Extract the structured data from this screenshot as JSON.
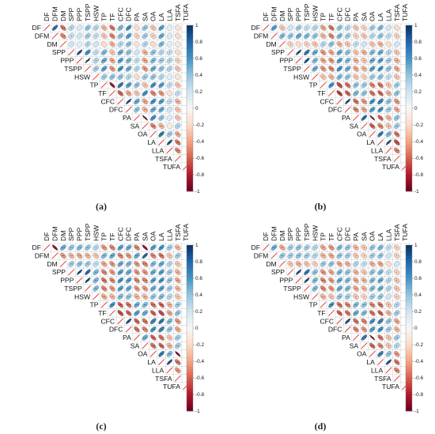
{
  "chart_data": [
    {
      "type": "heatmap",
      "subtype": "correlation-ellipse-upper-triangle",
      "caption": "(a)",
      "variables": [
        "DF",
        "DFM",
        "DM",
        "SPP",
        "PPP",
        "TSPP",
        "HSW",
        "TP",
        "TF",
        "CFC",
        "DFC",
        "PA",
        "SA",
        "OA",
        "LA",
        "LLA",
        "TSFA",
        "TUFA"
      ],
      "colorbar": {
        "ticks": [
          1,
          0.8,
          0.6,
          0.4,
          0.2,
          0,
          -0.2,
          -0.4,
          -0.6,
          -0.8,
          -1
        ],
        "colors": {
          "positive": "#053061",
          "zero": "#f7f7f7",
          "negative": "#67001f"
        }
      },
      "legend": "right",
      "correlation_rows": [
        [
          0.75,
          -0.55,
          0.3,
          0.15,
          0.4,
          0.3,
          -0.35,
          -0.55,
          0.45,
          0.6,
          -0.2,
          0.4,
          -0.3,
          0.55,
          0.1,
          -0.15
        ],
        [
          -0.5,
          0.25,
          0.2,
          0.35,
          0.25,
          -0.3,
          -0.5,
          0.4,
          0.55,
          -0.25,
          0.35,
          -0.25,
          0.5,
          0.15,
          -0.2
        ],
        [
          0.2,
          0.1,
          0.3,
          0.2,
          -0.2,
          -0.35,
          0.3,
          0.4,
          -0.15,
          0.3,
          -0.2,
          0.45,
          0.1,
          -0.1
        ],
        [
          0.85,
          0.6,
          0.25,
          0.45,
          -0.3,
          0.5,
          0.4,
          0.2,
          -0.35,
          0.4,
          0.3,
          0.25,
          -0.2
        ],
        [
          0.95,
          0.3,
          0.5,
          -0.4,
          0.55,
          0.45,
          0.25,
          -0.4,
          0.45,
          0.35,
          0.3,
          -0.25
        ],
        [
          0.35,
          0.55,
          -0.45,
          0.6,
          0.5,
          0.3,
          -0.45,
          0.5,
          0.4,
          0.3,
          -0.3
        ],
        [
          0.35,
          0.4,
          0.4,
          0.3,
          -0.2,
          0.35,
          0.4,
          0.3,
          0.1,
          -0.15
        ],
        [
          -0.8,
          0.7,
          0.55,
          0.4,
          -0.3,
          0.6,
          0.55,
          0.25,
          -0.3
        ],
        [
          -0.6,
          -0.4,
          -0.3,
          0.6,
          -0.5,
          -0.45,
          -0.15,
          0.25
        ],
        [
          0.9,
          0.5,
          -0.4,
          0.6,
          0.55,
          0.25,
          -0.35
        ],
        [
          0.4,
          -0.35,
          0.5,
          0.5,
          0.2,
          -0.3
        ],
        [
          -0.95,
          0.6,
          0.4,
          0.15,
          -0.3
        ],
        [
          -0.5,
          -0.35,
          -0.1,
          0.3
        ],
        [
          0.7,
          0.35,
          -0.4
        ],
        [
          0.85,
          -0.55
        ],
        [
          -0.5
        ],
        []
      ]
    },
    {
      "type": "heatmap",
      "subtype": "correlation-ellipse-upper-triangle",
      "caption": "(b)",
      "variables": [
        "DF",
        "DFM",
        "DM",
        "SPP",
        "PPP",
        "TSPP",
        "HSW",
        "TP",
        "TF",
        "CFC",
        "DFC",
        "PA",
        "SA",
        "OA",
        "LA",
        "LLA",
        "TSFA",
        "TUFA"
      ],
      "colorbar": {
        "ticks": [
          1,
          0.8,
          0.6,
          0.4,
          0.2,
          0,
          -0.2,
          -0.4,
          -0.6,
          -0.8,
          -1
        ],
        "colors": {
          "positive": "#053061",
          "zero": "#f7f7f7",
          "negative": "#67001f"
        }
      },
      "legend": "right",
      "correlation_rows": [
        [
          0.55,
          -0.3,
          0.2,
          0.35,
          0.25,
          0.3,
          -0.4,
          -0.55,
          0.4,
          0.3,
          -0.3,
          -0.25,
          0.35,
          0.45,
          0.2,
          -0.2
        ],
        [
          0.45,
          0.4,
          0.5,
          0.45,
          0.4,
          -0.35,
          -0.5,
          0.45,
          0.35,
          -0.25,
          -0.3,
          0.3,
          0.4,
          0.25,
          -0.25
        ],
        [
          -0.25,
          -0.2,
          -0.25,
          -0.3,
          0.3,
          0.4,
          -0.35,
          -0.3,
          0.25,
          0.2,
          -0.3,
          -0.35,
          -0.2,
          0.2
        ],
        [
          0.9,
          0.7,
          0.5,
          -0.45,
          -0.4,
          0.5,
          0.4,
          -0.3,
          -0.35,
          0.45,
          0.5,
          0.3,
          -0.3
        ],
        [
          0.85,
          0.45,
          -0.4,
          -0.45,
          0.55,
          0.45,
          -0.35,
          -0.3,
          0.5,
          0.55,
          0.35,
          -0.35
        ],
        [
          0.5,
          -0.45,
          -0.5,
          0.6,
          0.5,
          -0.4,
          -0.35,
          0.55,
          0.6,
          0.4,
          -0.4
        ],
        [
          -0.3,
          -0.35,
          0.45,
          0.4,
          -0.3,
          -0.25,
          0.35,
          0.4,
          0.25,
          -0.3
        ],
        [
          0.6,
          -0.65,
          -0.55,
          0.4,
          0.35,
          -0.5,
          -0.55,
          -0.3,
          0.35
        ],
        [
          -0.7,
          -0.6,
          0.45,
          0.4,
          -0.55,
          -0.6,
          -0.35,
          0.4
        ],
        [
          0.9,
          -0.55,
          -0.45,
          0.6,
          0.65,
          0.4,
          -0.45
        ],
        [
          -0.5,
          -0.4,
          0.55,
          0.6,
          0.35,
          -0.4
        ],
        [
          0.75,
          -0.95,
          -0.6,
          -0.35,
          0.4
        ],
        [
          -0.6,
          -0.5,
          -0.3,
          0.35
        ],
        [
          0.7,
          0.45,
          -0.55
        ],
        [
          0.9,
          -0.65
        ],
        [
          -0.5
        ],
        []
      ]
    },
    {
      "type": "heatmap",
      "subtype": "correlation-ellipse-upper-triangle",
      "caption": "(c)",
      "variables": [
        "DF",
        "DFM",
        "DM",
        "SPP",
        "PPP",
        "TSPP",
        "HSW",
        "TP",
        "TF",
        "CFC",
        "DFC",
        "PA",
        "SA",
        "OA",
        "LA",
        "LLA",
        "TSFA",
        "TUFA"
      ],
      "colorbar": {
        "ticks": [
          1,
          0.8,
          0.6,
          0.4,
          0.2,
          0,
          -0.2,
          -0.4,
          -0.6,
          -0.8,
          -1
        ],
        "colors": {
          "positive": "#053061",
          "zero": "#f7f7f7",
          "negative": "#67001f"
        }
      },
      "legend": "right",
      "correlation_rows": [
        [
          -0.85,
          0.5,
          0.4,
          0.45,
          0.4,
          0.3,
          -0.45,
          -0.5,
          0.55,
          0.5,
          -0.5,
          -0.85,
          0.55,
          0.6,
          0.35,
          -0.35
        ],
        [
          -0.45,
          -0.35,
          -0.4,
          -0.35,
          -0.3,
          0.45,
          0.5,
          -0.5,
          -0.45,
          0.5,
          0.8,
          -0.5,
          -0.55,
          -0.3,
          0.35
        ],
        [
          0.35,
          0.4,
          0.35,
          0.25,
          -0.4,
          -0.45,
          0.5,
          0.45,
          -0.45,
          -0.5,
          0.45,
          0.5,
          0.3,
          -0.3
        ],
        [
          0.9,
          0.75,
          0.45,
          -0.5,
          -0.45,
          0.55,
          0.5,
          -0.45,
          -0.45,
          0.5,
          0.55,
          0.35,
          -0.35
        ],
        [
          0.9,
          0.45,
          -0.55,
          -0.5,
          0.6,
          0.55,
          -0.5,
          -0.5,
          0.55,
          0.6,
          0.4,
          -0.4
        ],
        [
          0.45,
          -0.5,
          -0.45,
          0.55,
          0.5,
          -0.45,
          -0.45,
          0.5,
          0.55,
          0.35,
          -0.35
        ],
        [
          -0.4,
          -0.35,
          0.45,
          0.4,
          -0.35,
          -0.35,
          0.4,
          0.45,
          0.3,
          -0.3
        ],
        [
          0.6,
          -0.6,
          -0.55,
          0.5,
          0.45,
          -0.55,
          -0.6,
          -0.35,
          0.35
        ],
        [
          -0.65,
          -0.6,
          0.55,
          0.5,
          -0.6,
          -0.65,
          -0.4,
          0.4
        ],
        [
          0.85,
          -0.6,
          -0.55,
          0.65,
          0.7,
          0.45,
          -0.45
        ],
        [
          -0.55,
          -0.5,
          0.6,
          0.65,
          0.4,
          -0.4
        ],
        [
          0.5,
          -0.6,
          -0.55,
          -0.3,
          0.35
        ],
        [
          -0.55,
          -0.6,
          -0.35,
          0.35
        ],
        [
          0.7,
          0.45,
          -0.9
        ],
        [
          0.85,
          -0.55
        ],
        [
          -0.45
        ],
        []
      ]
    },
    {
      "type": "heatmap",
      "subtype": "correlation-ellipse-upper-triangle",
      "caption": "(d)",
      "variables": [
        "DF",
        "DFM",
        "DM",
        "SPP",
        "PPP",
        "TSPP",
        "HSW",
        "TP",
        "TF",
        "CFC",
        "DFC",
        "PA",
        "SA",
        "OA",
        "LA",
        "LLA",
        "TSFA",
        "TUFA"
      ],
      "colorbar": {
        "ticks": [
          1,
          0.8,
          0.6,
          0.4,
          0.2,
          0,
          -0.2,
          -0.4,
          -0.6,
          -0.8,
          -1
        ],
        "colors": {
          "positive": "#053061",
          "zero": "#f7f7f7",
          "negative": "#67001f"
        }
      },
      "legend": "right",
      "correlation_rows": [
        [
          0.5,
          -0.4,
          0.35,
          0.4,
          0.35,
          0.3,
          -0.4,
          -0.45,
          0.45,
          0.4,
          -0.35,
          -0.3,
          0.4,
          0.45,
          0.25,
          -0.25
        ],
        [
          0.4,
          0.35,
          0.4,
          0.35,
          0.3,
          -0.35,
          -0.4,
          0.4,
          0.35,
          -0.3,
          -0.25,
          0.35,
          0.4,
          0.2,
          -0.25
        ],
        [
          -0.3,
          -0.35,
          -0.3,
          -0.25,
          0.35,
          0.4,
          -0.4,
          -0.35,
          0.3,
          0.25,
          -0.35,
          -0.4,
          -0.2,
          0.2
        ],
        [
          0.9,
          0.7,
          0.4,
          -0.45,
          -0.4,
          0.45,
          0.4,
          -0.35,
          -0.3,
          0.4,
          0.45,
          0.25,
          -0.25
        ],
        [
          0.9,
          0.45,
          -0.5,
          -0.45,
          0.5,
          0.45,
          -0.4,
          -0.35,
          0.45,
          0.5,
          0.3,
          -0.3
        ],
        [
          0.45,
          -0.5,
          -0.45,
          0.5,
          0.45,
          -0.4,
          -0.35,
          0.45,
          0.5,
          0.3,
          -0.3
        ],
        [
          -0.35,
          -0.3,
          0.4,
          0.35,
          -0.3,
          -0.25,
          0.35,
          0.4,
          0.2,
          -0.25
        ],
        [
          0.6,
          -0.55,
          -0.5,
          0.45,
          0.4,
          -0.5,
          -0.55,
          -0.3,
          0.3
        ],
        [
          -0.6,
          -0.55,
          0.5,
          0.45,
          -0.55,
          -0.6,
          -0.35,
          0.35
        ],
        [
          0.85,
          -0.55,
          -0.5,
          0.6,
          0.65,
          0.4,
          -0.4
        ],
        [
          -0.5,
          -0.45,
          0.55,
          0.6,
          0.35,
          -0.35
        ],
        [
          0.7,
          -0.95,
          -0.55,
          -0.3,
          0.35
        ],
        [
          -0.6,
          -0.5,
          -0.3,
          0.3
        ],
        [
          0.65,
          0.4,
          -0.45
        ],
        [
          0.85,
          -0.55
        ],
        [
          -0.5
        ],
        []
      ]
    }
  ]
}
